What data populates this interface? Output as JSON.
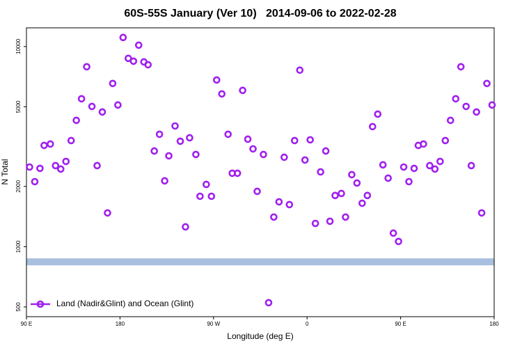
{
  "chart_data": {
    "type": "scatter",
    "title": "60S-55S January (Ver 10)   2014-09-06 to 2022-02-28",
    "xlabel": "Longitude (deg E)",
    "ylabel": "N Total",
    "x": [
      93,
      98,
      103,
      107,
      113,
      118,
      123,
      128,
      133,
      138,
      143,
      148,
      153,
      158,
      163,
      168,
      173,
      178,
      183,
      188,
      193,
      198,
      203,
      207,
      213,
      218,
      223,
      227,
      233,
      238,
      243,
      247,
      253,
      257,
      263,
      268,
      273,
      278,
      284,
      288,
      293,
      298,
      303,
      308,
      312,
      318,
      323,
      328,
      333,
      338,
      343,
      348,
      353,
      358,
      363,
      368,
      373,
      378,
      382,
      387,
      393,
      397,
      403,
      408,
      413,
      418,
      423,
      428,
      433,
      438,
      443,
      448,
      453,
      458,
      463,
      467,
      472,
      478,
      483,
      488,
      493,
      498,
      503,
      508,
      513,
      518,
      523,
      528,
      533,
      538
    ],
    "series": [
      {
        "name": "Land (Nadir&Glint) and Ocean (Glint)",
        "color": "#a020f0",
        "values": [
          2500,
          2113,
          2462,
          3206,
          3258,
          2541,
          2443,
          2667,
          3390,
          4277,
          5483,
          7925,
          5020,
          2541,
          4710,
          1475,
          6540,
          5105,
          11100,
          8730,
          8450,
          10160,
          8380,
          8110,
          3006,
          3645,
          2133,
          2844,
          4010,
          3365,
          1256,
          3500,
          2890,
          1786,
          2047,
          1786,
          6807,
          5800,
          3645,
          2328,
          2328,
          6040,
          3445,
          3082,
          1890,
          2890,
          525,
          1406,
          1675,
          2798,
          1623,
          3390,
          7620,
          2710,
          3420,
          1307,
          2364,
          3006,
          1340,
          1803,
          1845,
          1406,
          2291,
          2080,
          1648,
          1803,
          3980,
          4595,
          2564,
          2200,
          1169,
          1062,
          2500,
          2113,
          2462,
          3206,
          3258,
          2541,
          2443,
          2667,
          3390,
          4277,
          5483,
          7925,
          5020,
          2541,
          4710,
          1475,
          6540,
          5105
        ]
      }
    ],
    "reference_band": {
      "value": 840,
      "color": "#a8bfe0"
    },
    "xlim": [
      90,
      540
    ],
    "xticks": [
      {
        "value": 90,
        "label": "90 E"
      },
      {
        "value": 180,
        "label": "180"
      },
      {
        "value": 270,
        "label": "90 W"
      },
      {
        "value": 360,
        "label": "0"
      },
      {
        "value": 450,
        "label": "90 E"
      },
      {
        "value": 540,
        "label": "180"
      }
    ],
    "ylim": [
      447,
      12400
    ],
    "ylog": true,
    "yticks": [
      500,
      1000,
      2000,
      5000,
      10000
    ],
    "legend": "bottom-left"
  }
}
